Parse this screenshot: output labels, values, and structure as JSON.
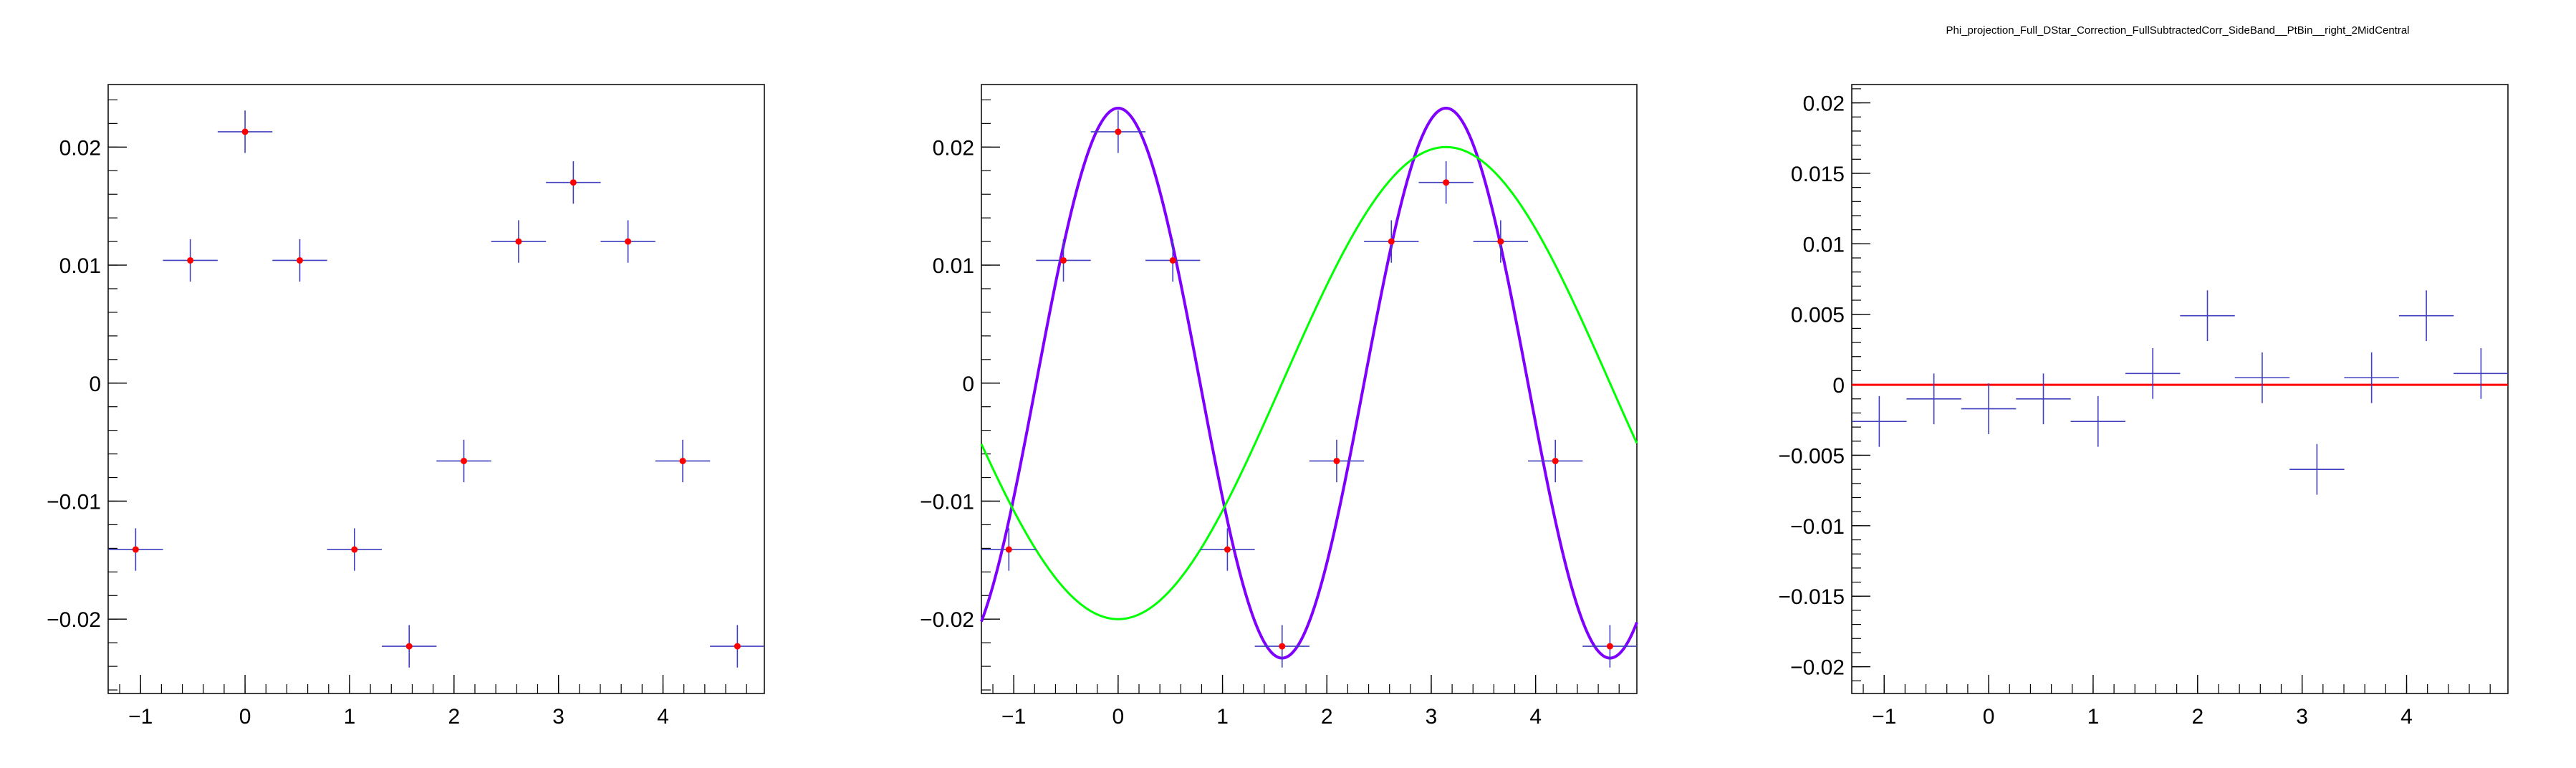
{
  "title": "Phi_projection_Full_DStar_Correction_FullSubtractedCorr_SideBand__PtBin__right_2MidCentral",
  "colors": {
    "background": "#ffffff",
    "axis": "#000000",
    "errorbar": "#3f3fbf",
    "marker": "#ff0000",
    "fit_total": "#7f00ff",
    "fit_component": "#00ff00",
    "zero_line": "#ff0000"
  },
  "chart_data": [
    {
      "type": "scatter",
      "title": "",
      "xlabel": "",
      "ylabel": "",
      "xlim": [
        -1.31,
        4.97
      ],
      "ylim": [
        -0.0263,
        0.0253
      ],
      "grid": false,
      "x_ticks": [
        -1,
        0,
        1,
        2,
        3,
        4
      ],
      "x_tick_labels": [
        "−1",
        "0",
        "1",
        "2",
        "3",
        "4"
      ],
      "y_ticks": [
        -0.02,
        -0.01,
        0,
        0.01,
        0.02
      ],
      "y_tick_labels": [
        "−0.02",
        "−0.01",
        "0",
        "0.01",
        "0.02"
      ],
      "bin_halfwidth": 0.262,
      "series": [
        {
          "markers": true,
          "x": [
            -1.047,
            -0.524,
            0.0,
            0.524,
            1.047,
            1.571,
            2.094,
            2.618,
            3.142,
            3.665,
            4.189,
            4.712
          ],
          "y": [
            -0.0141,
            0.0104,
            0.0213,
            0.0104,
            -0.0141,
            -0.0223,
            -0.0066,
            0.012,
            0.017,
            0.012,
            -0.0066,
            -0.0223
          ],
          "yerr": [
            0.0018,
            0.0018,
            0.0018,
            0.0018,
            0.0018,
            0.0018,
            0.0018,
            0.0018,
            0.0018,
            0.0018,
            0.0018,
            0.0018
          ]
        }
      ]
    },
    {
      "type": "scatter",
      "title": "",
      "xlabel": "",
      "ylabel": "",
      "xlim": [
        -1.31,
        4.97
      ],
      "ylim": [
        -0.0263,
        0.0253
      ],
      "grid": false,
      "x_ticks": [
        -1,
        0,
        1,
        2,
        3,
        4
      ],
      "x_tick_labels": [
        "−1",
        "0",
        "1",
        "2",
        "3",
        "4"
      ],
      "y_ticks": [
        -0.02,
        -0.01,
        0,
        0.01,
        0.02
      ],
      "y_tick_labels": [
        "−0.02",
        "−0.01",
        "0",
        "0.01",
        "0.02"
      ],
      "bin_halfwidth": 0.262,
      "series": [
        {
          "markers": true,
          "x": [
            -1.047,
            -0.524,
            0.0,
            0.524,
            1.047,
            1.571,
            2.094,
            2.618,
            3.142,
            3.665,
            4.189,
            4.712
          ],
          "y": [
            -0.0141,
            0.0104,
            0.0213,
            0.0104,
            -0.0141,
            -0.0223,
            -0.0066,
            0.012,
            0.017,
            0.012,
            -0.0066,
            -0.0223
          ],
          "yerr": [
            0.0018,
            0.0018,
            0.0018,
            0.0018,
            0.0018,
            0.0018,
            0.0018,
            0.0018,
            0.0018,
            0.0018,
            0.0018,
            0.0018
          ]
        }
      ],
      "curves": [
        {
          "color_key": "fit_total",
          "formula": "cos",
          "offset": 0.0,
          "terms": [
            {
              "amp": 0.0,
              "mult": 1
            },
            {
              "amp": 0.0233,
              "mult": 2
            }
          ]
        },
        {
          "color_key": "fit_component",
          "formula": "cos",
          "offset": 0.0,
          "terms": [
            {
              "amp": -0.02,
              "mult": 1
            }
          ]
        }
      ]
    },
    {
      "type": "scatter",
      "title": "Phi_projection_Full_DStar_Correction_FullSubtractedCorr_SideBand__PtBin__right_2MidCentral",
      "xlabel": "",
      "ylabel": "",
      "xlim": [
        -1.31,
        4.97
      ],
      "ylim": [
        -0.0219,
        0.0213
      ],
      "grid": false,
      "x_ticks": [
        -1,
        0,
        1,
        2,
        3,
        4
      ],
      "x_tick_labels": [
        "−1",
        "0",
        "1",
        "2",
        "3",
        "4"
      ],
      "y_ticks": [
        -0.02,
        -0.015,
        -0.01,
        -0.005,
        0,
        0.005,
        0.01,
        0.015,
        0.02
      ],
      "y_tick_labels": [
        "−0.02",
        "−0.015",
        "−0.01",
        "−0.005",
        "0",
        "0.005",
        "0.01",
        "0.015",
        "0.02"
      ],
      "bin_halfwidth": 0.262,
      "series": [
        {
          "markers": false,
          "x": [
            -1.047,
            -0.524,
            0.0,
            0.524,
            1.047,
            1.571,
            2.094,
            2.618,
            3.142,
            3.665,
            4.189,
            4.712
          ],
          "y": [
            -0.0026,
            -0.001,
            -0.0017,
            -0.001,
            -0.0026,
            0.0008,
            0.0049,
            0.0005,
            -0.006,
            0.0005,
            0.0049,
            0.0008
          ],
          "yerr": [
            0.0018,
            0.0018,
            0.0018,
            0.0018,
            0.0018,
            0.0018,
            0.0018,
            0.0018,
            0.0018,
            0.0018,
            0.0018,
            0.0018
          ]
        }
      ],
      "hlines": [
        {
          "y": 0,
          "color_key": "zero_line"
        }
      ]
    }
  ]
}
